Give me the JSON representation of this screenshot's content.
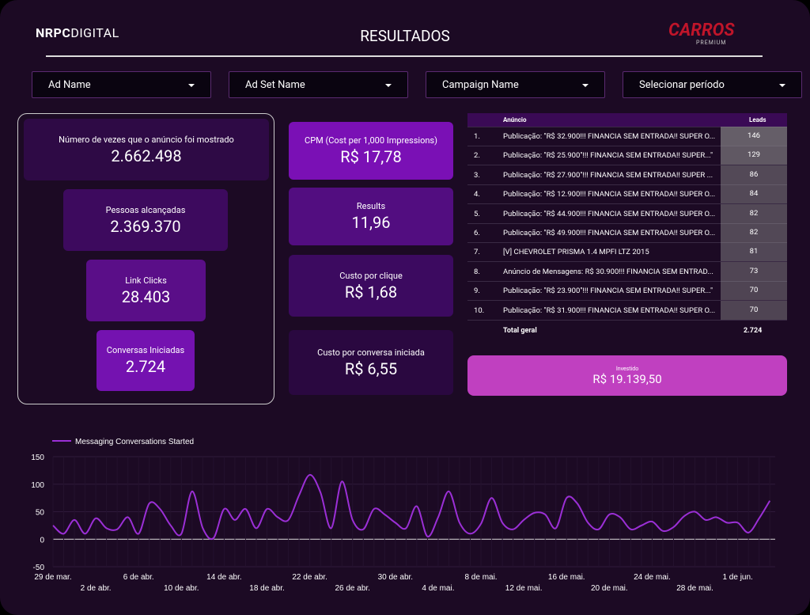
{
  "header": {
    "logo_left_bold": "NRPC",
    "logo_left_light": "DIGITAL",
    "title": "RESULTADOS",
    "logo_right": "CARROS",
    "logo_right_sub": "PREMIUM"
  },
  "filters": [
    "Ad Name",
    "Ad Set Name",
    "Campaign Name",
    "Selecionar período"
  ],
  "funnel": [
    {
      "label": "Número de vezes que o anúncio foi mostrado",
      "value": "2.662.498"
    },
    {
      "label": "Pessoas alcançadas",
      "value": "2.369.370"
    },
    {
      "label": "Link Clicks",
      "value": "28.403"
    },
    {
      "label": "Conversas Iniciadas",
      "value": "2.724"
    }
  ],
  "cards": [
    {
      "label": "CPM (Cost per 1,000 Impressions)",
      "value": "R$ 17,78"
    },
    {
      "label": "Results",
      "value": "11,96"
    },
    {
      "label": "Custo por clique",
      "value": "R$ 1,68"
    },
    {
      "label": "Custo por conversa iniciada",
      "value": "R$ 6,55"
    }
  ],
  "table": {
    "columns": [
      "Anúncio",
      "Leads"
    ],
    "rows": [
      [
        "1.",
        "Publicação: \"R$ 32.900!!! FINANCIA SEM ENTRADA!! SUPER O...",
        146
      ],
      [
        "2.",
        "Publicação: \"R$ 25.900\"!!! FINANCIA SEM ENTRADA!! SUPER...\"",
        129
      ],
      [
        "3.",
        "Publicação: \"R$ 27.900\"!!! FINANCIA SEM ENTRADA!! SUPER ...",
        86
      ],
      [
        "4.",
        "Publicação: \"R$ 12.900!!! FINANCIA SEM ENTRADA!! SUPER O...",
        84
      ],
      [
        "5.",
        "Publicação: \"R$ 44.900!!! FINANCIA SEM ENTRADA!! SUPER O...",
        82
      ],
      [
        "6.",
        "Publicação: \"R$ 49.900!!! FINANCIA SEM ENTRADA!! SUPER O...",
        82
      ],
      [
        "7.",
        "[V] CHEVROLET PRISMA 1.4 MPFI LTZ 2015",
        81
      ],
      [
        "8.",
        "Anúncio de Mensagens: R$ 30.900!!! FINANCIA SEM ENTRAD...",
        73
      ],
      [
        "9.",
        "Publicação: \"R$ 23.900\"!!! FINANCIA SEM ENTRADA!! SUPER...\"",
        70
      ],
      [
        "10.",
        "Publicação: \"R$ 31.900!!! FINANCIA SEM ENTRADA!! SUPER O...",
        70
      ]
    ],
    "total_label": "Total geral",
    "total": "2.724"
  },
  "invest": {
    "label": "Investido",
    "value": "R$ 19.139,50"
  },
  "chart_data": {
    "type": "line",
    "categories": [
      "29 de mar.",
      null,
      null,
      null,
      "2 de abr.",
      null,
      null,
      null,
      "6 de abr.",
      null,
      null,
      null,
      "10 de abr.",
      null,
      null,
      null,
      "14 de abr.",
      null,
      null,
      null,
      "18 de abr.",
      null,
      null,
      null,
      "22 de abr.",
      null,
      null,
      null,
      "26 de abr.",
      null,
      null,
      null,
      "30 de abr.",
      null,
      null,
      null,
      "4 de mai.",
      null,
      null,
      null,
      "8 de mai.",
      null,
      null,
      null,
      "12 de mai.",
      null,
      null,
      null,
      "16 de mai.",
      null,
      null,
      null,
      "20 de mai.",
      null,
      null,
      null,
      "24 de mai.",
      null,
      null,
      null,
      "28 de mai.",
      null,
      null,
      null,
      "1 de jun.",
      null,
      null,
      null
    ],
    "series": [
      {
        "name": "Messaging Conversations Started",
        "color": "#9b2fd6",
        "values": [
          25,
          10,
          35,
          10,
          38,
          20,
          18,
          40,
          10,
          65,
          55,
          25,
          10,
          87,
          20,
          2,
          55,
          35,
          55,
          20,
          55,
          40,
          35,
          80,
          117,
          85,
          20,
          105,
          35,
          18,
          55,
          45,
          30,
          20,
          60,
          5,
          40,
          87,
          30,
          10,
          28,
          75,
          30,
          18,
          35,
          48,
          45,
          20,
          75,
          65,
          30,
          18,
          45,
          40,
          18,
          25,
          32,
          15,
          22,
          42,
          50,
          35,
          40,
          30,
          30,
          12,
          38,
          70
        ]
      }
    ],
    "ylim": [
      -50,
      150
    ],
    "yticks": [
      -50,
      0,
      50,
      100,
      150
    ]
  }
}
